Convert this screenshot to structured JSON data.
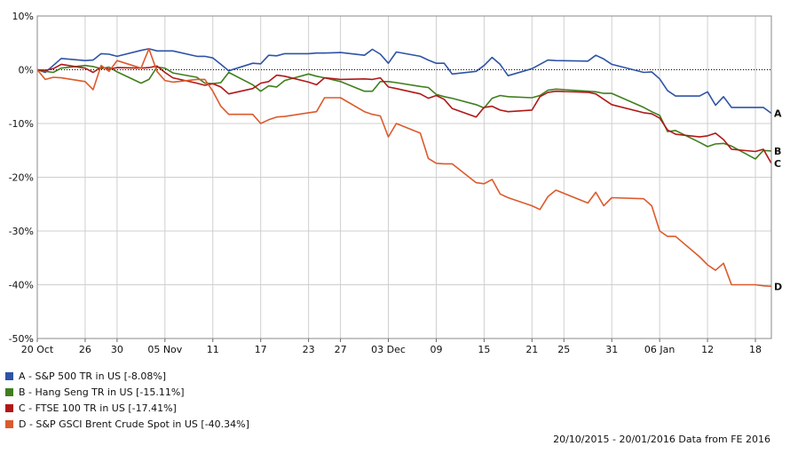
{
  "chart_data": {
    "type": "line",
    "title": "",
    "xlabel": "",
    "ylabel": "",
    "ylim": [
      -50,
      10
    ],
    "y_ticks": [
      "10%",
      "0%",
      "-10%",
      "-20%",
      "-30%",
      "-40%",
      "-50%"
    ],
    "x_start": "2015-10-20",
    "x_end": "2016-01-20",
    "x_ticks": [
      {
        "date": "2015-10-20",
        "label": "20 Oct"
      },
      {
        "date": "2015-10-26",
        "label": "26"
      },
      {
        "date": "2015-10-30",
        "label": "30"
      },
      {
        "date": "2015-11-05",
        "label": "05 Nov"
      },
      {
        "date": "2015-11-11",
        "label": "11"
      },
      {
        "date": "2015-11-17",
        "label": "17"
      },
      {
        "date": "2015-11-23",
        "label": "23"
      },
      {
        "date": "2015-11-27",
        "label": "27"
      },
      {
        "date": "2015-12-03",
        "label": "03 Dec"
      },
      {
        "date": "2015-12-09",
        "label": "09"
      },
      {
        "date": "2015-12-15",
        "label": "15"
      },
      {
        "date": "2015-12-21",
        "label": "21"
      },
      {
        "date": "2015-12-25",
        "label": "25"
      },
      {
        "date": "2015-12-31",
        "label": "31"
      },
      {
        "date": "2016-01-06",
        "label": "06 Jan"
      },
      {
        "date": "2016-01-12",
        "label": "12"
      },
      {
        "date": "2016-01-18",
        "label": "18"
      }
    ],
    "grid": true,
    "legend_position": "bottom-left",
    "series": [
      {
        "name": "A - S&P 500 TR in US [-8.08%]",
        "end_label": "A",
        "color": "#2e53a6",
        "points": [
          [
            "2015-10-20",
            0
          ],
          [
            "2015-10-21",
            -0.5
          ],
          [
            "2015-10-22",
            0.8
          ],
          [
            "2015-10-23",
            2.1
          ],
          [
            "2015-10-26",
            1.7
          ],
          [
            "2015-10-27",
            1.8
          ],
          [
            "2015-10-28",
            3.0
          ],
          [
            "2015-10-29",
            2.9
          ],
          [
            "2015-10-30",
            2.5
          ],
          [
            "2015-11-02",
            3.6
          ],
          [
            "2015-11-03",
            3.9
          ],
          [
            "2015-11-04",
            3.5
          ],
          [
            "2015-11-05",
            3.5
          ],
          [
            "2015-11-06",
            3.5
          ],
          [
            "2015-11-09",
            2.5
          ],
          [
            "2015-11-10",
            2.5
          ],
          [
            "2015-11-11",
            2.2
          ],
          [
            "2015-11-12",
            1.0
          ],
          [
            "2015-11-13",
            -0.2
          ],
          [
            "2015-11-16",
            1.2
          ],
          [
            "2015-11-17",
            1.1
          ],
          [
            "2015-11-18",
            2.7
          ],
          [
            "2015-11-19",
            2.6
          ],
          [
            "2015-11-20",
            3.0
          ],
          [
            "2015-11-23",
            3.0
          ],
          [
            "2015-11-24",
            3.1
          ],
          [
            "2015-11-25",
            3.1
          ],
          [
            "2015-11-27",
            3.2
          ],
          [
            "2015-11-30",
            2.7
          ],
          [
            "2015-12-01",
            3.8
          ],
          [
            "2015-12-02",
            2.9
          ],
          [
            "2015-12-03",
            1.2
          ],
          [
            "2015-12-04",
            3.3
          ],
          [
            "2015-12-07",
            2.5
          ],
          [
            "2015-12-08",
            1.8
          ],
          [
            "2015-12-09",
            1.2
          ],
          [
            "2015-12-10",
            1.2
          ],
          [
            "2015-12-11",
            -0.8
          ],
          [
            "2015-12-14",
            -0.3
          ],
          [
            "2015-12-15",
            0.8
          ],
          [
            "2015-12-16",
            2.3
          ],
          [
            "2015-12-17",
            1.0
          ],
          [
            "2015-12-18",
            -1.1
          ],
          [
            "2015-12-21",
            0.2
          ],
          [
            "2015-12-22",
            1.0
          ],
          [
            "2015-12-23",
            1.8
          ],
          [
            "2015-12-24",
            1.7
          ],
          [
            "2015-12-28",
            1.6
          ],
          [
            "2015-12-29",
            2.7
          ],
          [
            "2015-12-30",
            2.0
          ],
          [
            "2015-12-31",
            1.0
          ],
          [
            "2016-01-04",
            -0.5
          ],
          [
            "2016-01-05",
            -0.4
          ],
          [
            "2016-01-06",
            -1.7
          ],
          [
            "2016-01-07",
            -3.9
          ],
          [
            "2016-01-08",
            -4.9
          ],
          [
            "2016-01-11",
            -4.9
          ],
          [
            "2016-01-12",
            -4.1
          ],
          [
            "2016-01-13",
            -6.6
          ],
          [
            "2016-01-14",
            -5.0
          ],
          [
            "2016-01-15",
            -7.0
          ],
          [
            "2016-01-18",
            -7.0
          ],
          [
            "2016-01-19",
            -7.0
          ],
          [
            "2016-01-20",
            -8.1
          ]
        ]
      },
      {
        "name": "B - Hang Seng TR in US [-15.11%]",
        "end_label": "B",
        "color": "#3f7f1e",
        "points": [
          [
            "2015-10-20",
            0
          ],
          [
            "2015-10-21",
            -0.3
          ],
          [
            "2015-10-22",
            -0.5
          ],
          [
            "2015-10-23",
            0.3
          ],
          [
            "2015-10-26",
            0.8
          ],
          [
            "2015-10-27",
            0.6
          ],
          [
            "2015-10-28",
            0.2
          ],
          [
            "2015-10-29",
            0.5
          ],
          [
            "2015-10-30",
            -0.4
          ],
          [
            "2015-11-02",
            -2.5
          ],
          [
            "2015-11-03",
            -1.8
          ],
          [
            "2015-11-04",
            0.5
          ],
          [
            "2015-11-05",
            0.3
          ],
          [
            "2015-11-06",
            -0.6
          ],
          [
            "2015-11-09",
            -1.4
          ],
          [
            "2015-11-10",
            -2.5
          ],
          [
            "2015-11-11",
            -2.6
          ],
          [
            "2015-11-12",
            -2.4
          ],
          [
            "2015-11-13",
            -0.5
          ],
          [
            "2015-11-16",
            -2.8
          ],
          [
            "2015-11-17",
            -4.0
          ],
          [
            "2015-11-18",
            -3.0
          ],
          [
            "2015-11-19",
            -3.2
          ],
          [
            "2015-11-20",
            -2.0
          ],
          [
            "2015-11-23",
            -0.8
          ],
          [
            "2015-11-24",
            -1.2
          ],
          [
            "2015-11-25",
            -1.5
          ],
          [
            "2015-11-27",
            -2.2
          ],
          [
            "2015-11-30",
            -4.0
          ],
          [
            "2015-12-01",
            -4.0
          ],
          [
            "2015-12-02",
            -2.2
          ],
          [
            "2015-12-03",
            -2.2
          ],
          [
            "2015-12-04",
            -2.4
          ],
          [
            "2015-12-07",
            -3.1
          ],
          [
            "2015-12-08",
            -3.3
          ],
          [
            "2015-12-09",
            -4.6
          ],
          [
            "2015-12-10",
            -5.0
          ],
          [
            "2015-12-11",
            -5.3
          ],
          [
            "2015-12-14",
            -6.5
          ],
          [
            "2015-12-15",
            -7.1
          ],
          [
            "2015-12-16",
            -5.3
          ],
          [
            "2015-12-17",
            -4.8
          ],
          [
            "2015-12-18",
            -5.0
          ],
          [
            "2015-12-21",
            -5.2
          ],
          [
            "2015-12-22",
            -4.8
          ],
          [
            "2015-12-23",
            -3.8
          ],
          [
            "2015-12-24",
            -3.6
          ],
          [
            "2015-12-28",
            -4.0
          ],
          [
            "2015-12-29",
            -4.1
          ],
          [
            "2015-12-30",
            -4.4
          ],
          [
            "2015-12-31",
            -4.4
          ],
          [
            "2016-01-04",
            -7.0
          ],
          [
            "2016-01-05",
            -7.8
          ],
          [
            "2016-01-06",
            -8.5
          ],
          [
            "2016-01-07",
            -11.5
          ],
          [
            "2016-01-08",
            -11.3
          ],
          [
            "2016-01-11",
            -13.5
          ],
          [
            "2016-01-12",
            -14.3
          ],
          [
            "2016-01-13",
            -13.8
          ],
          [
            "2016-01-14",
            -13.7
          ],
          [
            "2016-01-15",
            -14.2
          ],
          [
            "2016-01-18",
            -16.6
          ],
          [
            "2016-01-19",
            -15.0
          ],
          [
            "2016-01-20",
            -15.1
          ]
        ]
      },
      {
        "name": "C - FTSE 100 TR in US [-17.41%]",
        "end_label": "C",
        "color": "#b01818",
        "points": [
          [
            "2015-10-20",
            0
          ],
          [
            "2015-10-21",
            -0.1
          ],
          [
            "2015-10-22",
            0.2
          ],
          [
            "2015-10-23",
            1.0
          ],
          [
            "2015-10-26",
            0.3
          ],
          [
            "2015-10-27",
            -0.5
          ],
          [
            "2015-10-28",
            0.5
          ],
          [
            "2015-10-29",
            0.1
          ],
          [
            "2015-10-30",
            0.4
          ],
          [
            "2015-11-02",
            0.3
          ],
          [
            "2015-11-03",
            0.4
          ],
          [
            "2015-11-04",
            0.7
          ],
          [
            "2015-11-05",
            -0.5
          ],
          [
            "2015-11-06",
            -1.5
          ],
          [
            "2015-11-09",
            -2.5
          ],
          [
            "2015-11-10",
            -2.9
          ],
          [
            "2015-11-11",
            -2.6
          ],
          [
            "2015-11-12",
            -3.2
          ],
          [
            "2015-11-13",
            -4.5
          ],
          [
            "2015-11-16",
            -3.5
          ],
          [
            "2015-11-17",
            -2.5
          ],
          [
            "2015-11-18",
            -2.2
          ],
          [
            "2015-11-19",
            -1.0
          ],
          [
            "2015-11-20",
            -1.2
          ],
          [
            "2015-11-23",
            -2.3
          ],
          [
            "2015-11-24",
            -2.8
          ],
          [
            "2015-11-25",
            -1.5
          ],
          [
            "2015-11-27",
            -1.8
          ],
          [
            "2015-11-30",
            -1.7
          ],
          [
            "2015-12-01",
            -1.8
          ],
          [
            "2015-12-02",
            -1.5
          ],
          [
            "2015-12-03",
            -3.2
          ],
          [
            "2015-12-04",
            -3.5
          ],
          [
            "2015-12-07",
            -4.5
          ],
          [
            "2015-12-08",
            -5.3
          ],
          [
            "2015-12-09",
            -4.8
          ],
          [
            "2015-12-10",
            -5.5
          ],
          [
            "2015-12-11",
            -7.2
          ],
          [
            "2015-12-14",
            -8.8
          ],
          [
            "2015-12-15",
            -7.0
          ],
          [
            "2015-12-16",
            -6.8
          ],
          [
            "2015-12-17",
            -7.5
          ],
          [
            "2015-12-18",
            -7.8
          ],
          [
            "2015-12-21",
            -7.5
          ],
          [
            "2015-12-22",
            -5.0
          ],
          [
            "2015-12-23",
            -4.2
          ],
          [
            "2015-12-24",
            -4.0
          ],
          [
            "2015-12-28",
            -4.2
          ],
          [
            "2015-12-29",
            -4.5
          ],
          [
            "2015-12-30",
            -5.5
          ],
          [
            "2015-12-31",
            -6.5
          ],
          [
            "2016-01-04",
            -8.0
          ],
          [
            "2016-01-05",
            -8.2
          ],
          [
            "2016-01-06",
            -9.0
          ],
          [
            "2016-01-07",
            -11.2
          ],
          [
            "2016-01-08",
            -12.0
          ],
          [
            "2016-01-11",
            -12.5
          ],
          [
            "2016-01-12",
            -12.3
          ],
          [
            "2016-01-13",
            -11.8
          ],
          [
            "2016-01-14",
            -13.0
          ],
          [
            "2016-01-15",
            -14.8
          ],
          [
            "2016-01-18",
            -15.2
          ],
          [
            "2016-01-19",
            -14.8
          ],
          [
            "2016-01-20",
            -17.4
          ]
        ]
      },
      {
        "name": "D - S&P GSCI Brent Crude Spot in US [-40.34%]",
        "end_label": "D",
        "color": "#dc5a2c",
        "points": [
          [
            "2015-10-20",
            0
          ],
          [
            "2015-10-21",
            -1.8
          ],
          [
            "2015-10-22",
            -1.4
          ],
          [
            "2015-10-23",
            -1.5
          ],
          [
            "2015-10-26",
            -2.2
          ],
          [
            "2015-10-27",
            -3.7
          ],
          [
            "2015-10-28",
            0.8
          ],
          [
            "2015-10-29",
            -0.3
          ],
          [
            "2015-10-30",
            1.7
          ],
          [
            "2015-11-02",
            0.3
          ],
          [
            "2015-11-03",
            3.9
          ],
          [
            "2015-11-04",
            -0.3
          ],
          [
            "2015-11-05",
            -2.0
          ],
          [
            "2015-11-06",
            -2.3
          ],
          [
            "2015-11-09",
            -1.8
          ],
          [
            "2015-11-10",
            -1.8
          ],
          [
            "2015-11-11",
            -4.0
          ],
          [
            "2015-11-12",
            -6.8
          ],
          [
            "2015-11-13",
            -8.3
          ],
          [
            "2015-11-16",
            -8.3
          ],
          [
            "2015-11-17",
            -10.0
          ],
          [
            "2015-11-18",
            -9.3
          ],
          [
            "2015-11-19",
            -8.8
          ],
          [
            "2015-11-20",
            -8.7
          ],
          [
            "2015-11-23",
            -8.0
          ],
          [
            "2015-11-24",
            -7.8
          ],
          [
            "2015-11-25",
            -5.2
          ],
          [
            "2015-11-27",
            -5.2
          ],
          [
            "2015-11-30",
            -7.8
          ],
          [
            "2015-12-01",
            -8.3
          ],
          [
            "2015-12-02",
            -8.6
          ],
          [
            "2015-12-03",
            -12.5
          ],
          [
            "2015-12-04",
            -10.0
          ],
          [
            "2015-12-07",
            -11.8
          ],
          [
            "2015-12-08",
            -16.5
          ],
          [
            "2015-12-09",
            -17.4
          ],
          [
            "2015-12-10",
            -17.5
          ],
          [
            "2015-12-11",
            -17.5
          ],
          [
            "2015-12-14",
            -21.0
          ],
          [
            "2015-12-15",
            -21.2
          ],
          [
            "2015-12-16",
            -20.4
          ],
          [
            "2015-12-17",
            -23.1
          ],
          [
            "2015-12-18",
            -23.8
          ],
          [
            "2015-12-21",
            -25.3
          ],
          [
            "2015-12-22",
            -26.0
          ],
          [
            "2015-12-23",
            -23.6
          ],
          [
            "2015-12-24",
            -22.4
          ],
          [
            "2015-12-28",
            -24.8
          ],
          [
            "2015-12-29",
            -22.8
          ],
          [
            "2015-12-30",
            -25.3
          ],
          [
            "2015-12-31",
            -23.8
          ],
          [
            "2016-01-04",
            -24.0
          ],
          [
            "2016-01-05",
            -25.3
          ],
          [
            "2016-01-06",
            -30.0
          ],
          [
            "2016-01-07",
            -31.0
          ],
          [
            "2016-01-08",
            -31.0
          ],
          [
            "2016-01-11",
            -34.8
          ],
          [
            "2016-01-12",
            -36.3
          ],
          [
            "2016-01-13",
            -37.3
          ],
          [
            "2016-01-14",
            -36.0
          ],
          [
            "2016-01-15",
            -40.0
          ],
          [
            "2016-01-18",
            -40.0
          ],
          [
            "2016-01-19",
            -40.2
          ],
          [
            "2016-01-20",
            -40.3
          ]
        ]
      }
    ]
  },
  "footer": {
    "text": "20/10/2015 - 20/01/2016 Data from FE 2016"
  }
}
